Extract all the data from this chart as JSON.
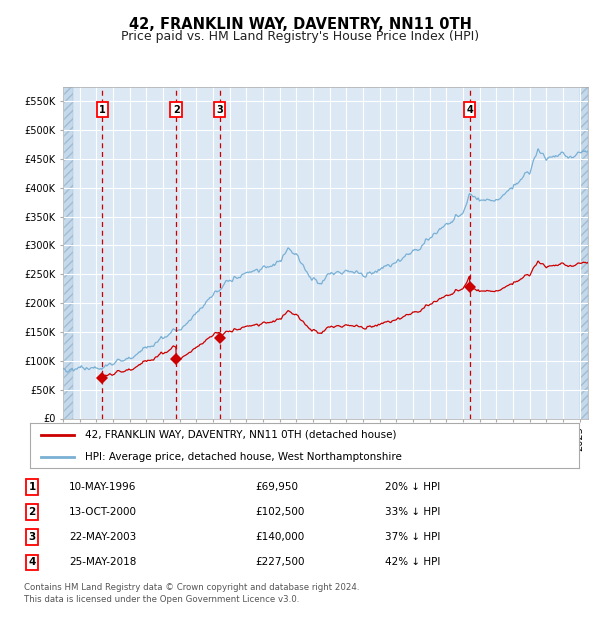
{
  "title": "42, FRANKLIN WAY, DAVENTRY, NN11 0TH",
  "subtitle": "Price paid vs. HM Land Registry's House Price Index (HPI)",
  "ylim": [
    0,
    575000
  ],
  "yticks": [
    0,
    50000,
    100000,
    150000,
    200000,
    250000,
    300000,
    350000,
    400000,
    450000,
    500000,
    550000
  ],
  "xlim_start": 1994.0,
  "xlim_end": 2025.5,
  "bg_color": "#dce9f5",
  "grid_color": "#ffffff",
  "transactions": [
    {
      "date_decimal": 1996.36,
      "price": 69950,
      "label": "1"
    },
    {
      "date_decimal": 2000.79,
      "price": 102500,
      "label": "2"
    },
    {
      "date_decimal": 2003.39,
      "price": 140000,
      "label": "3"
    },
    {
      "date_decimal": 2018.4,
      "price": 227500,
      "label": "4"
    }
  ],
  "transaction_color": "#cc0000",
  "hpi_color": "#7ab0d4",
  "vline_color": "#cc0000",
  "legend_entries": [
    "42, FRANKLIN WAY, DAVENTRY, NN11 0TH (detached house)",
    "HPI: Average price, detached house, West Northamptonshire"
  ],
  "table_rows": [
    [
      "1",
      "10-MAY-1996",
      "£69,950",
      "20% ↓ HPI"
    ],
    [
      "2",
      "13-OCT-2000",
      "£102,500",
      "33% ↓ HPI"
    ],
    [
      "3",
      "22-MAY-2003",
      "£140,000",
      "37% ↓ HPI"
    ],
    [
      "4",
      "25-MAY-2018",
      "£227,500",
      "42% ↓ HPI"
    ]
  ],
  "footer": "Contains HM Land Registry data © Crown copyright and database right 2024.\nThis data is licensed under the Open Government Licence v3.0.",
  "title_fontsize": 10.5,
  "subtitle_fontsize": 9,
  "tick_fontsize": 7
}
